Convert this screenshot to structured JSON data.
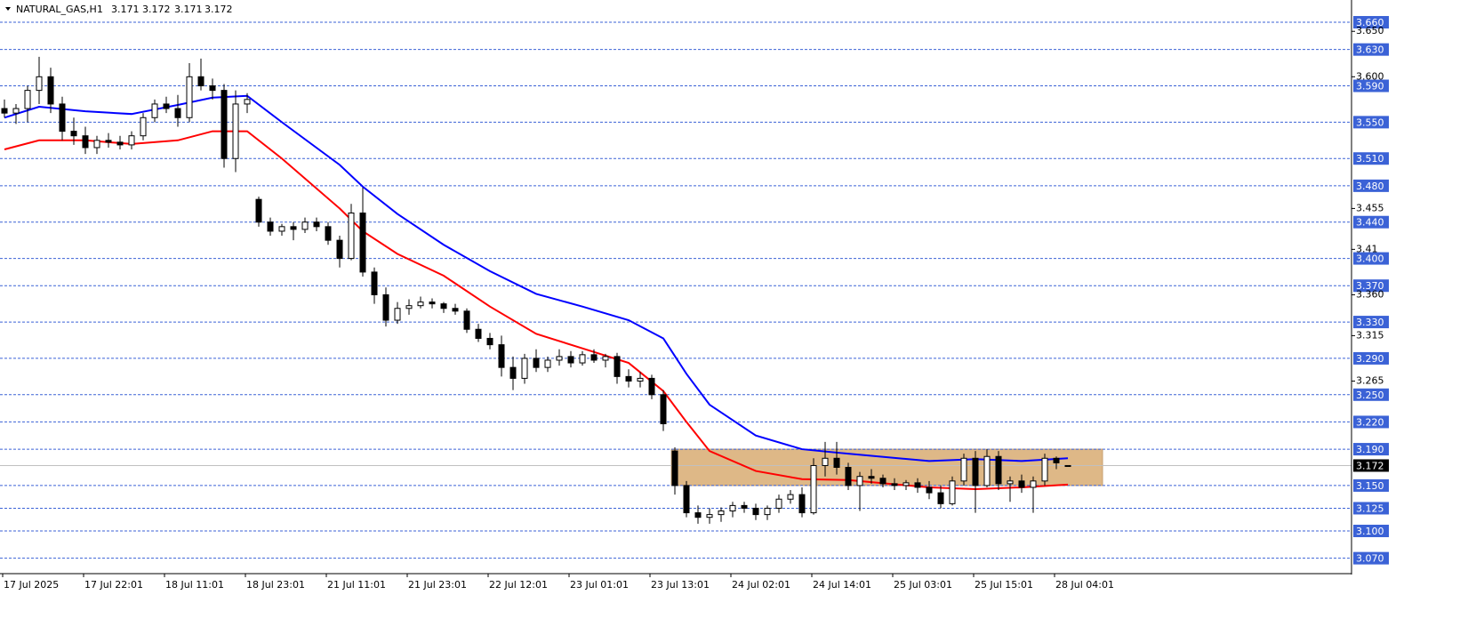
{
  "header": {
    "symbol": "NATURAL_GAS,H1",
    "ohlc": [
      "3.171",
      "3.172",
      "3.171",
      "3.172"
    ]
  },
  "chart_data": {
    "type": "candlestick",
    "categories": [
      "17 Jul 2025",
      null,
      null,
      null,
      null,
      null,
      null,
      "17 Jul 22:01",
      null,
      null,
      null,
      null,
      null,
      null,
      "18 Jul 11:01",
      null,
      null,
      null,
      null,
      null,
      null,
      "18 Jul 23:01",
      null,
      null,
      null,
      null,
      null,
      null,
      "21 Jul 11:01",
      null,
      null,
      null,
      null,
      null,
      null,
      "21 Jul 23:01",
      null,
      null,
      null,
      null,
      null,
      null,
      "22 Jul 12:01",
      null,
      null,
      null,
      null,
      null,
      null,
      "23 Jul 01:01",
      null,
      null,
      null,
      null,
      null,
      null,
      "23 Jul 13:01",
      null,
      null,
      null,
      null,
      null,
      null,
      "24 Jul 02:01",
      null,
      null,
      null,
      null,
      null,
      null,
      "24 Jul 14:01",
      null,
      null,
      null,
      null,
      null,
      null,
      "25 Jul 03:01",
      null,
      null,
      null,
      null,
      null,
      null,
      "25 Jul 15:01",
      null,
      null,
      null,
      null,
      null,
      null,
      "28 Jul 04:01",
      null
    ],
    "open": [
      3.565,
      3.56,
      3.565,
      3.585,
      3.6,
      3.57,
      3.54,
      3.535,
      3.522,
      3.53,
      3.528,
      3.525,
      3.535,
      3.555,
      3.57,
      3.565,
      3.555,
      3.6,
      3.59,
      3.585,
      3.51,
      3.57,
      3.465,
      3.44,
      3.43,
      3.435,
      3.432,
      3.44,
      3.435,
      3.42,
      3.4,
      3.45,
      3.385,
      3.36,
      3.332,
      3.345,
      3.348,
      3.352,
      3.35,
      3.345,
      3.342,
      3.322,
      3.312,
      3.305,
      3.28,
      3.268,
      3.29,
      3.28,
      3.288,
      3.292,
      3.285,
      3.294,
      3.288,
      3.292,
      3.27,
      3.265,
      3.268,
      3.25,
      3.188,
      3.15,
      3.12,
      3.115,
      3.118,
      3.122,
      3.128,
      3.125,
      3.118,
      3.125,
      3.135,
      3.14,
      3.12,
      3.172,
      3.18,
      3.17,
      3.15,
      3.16,
      3.158,
      3.152,
      3.15,
      3.153,
      3.148,
      3.142,
      3.13,
      3.155,
      3.18,
      3.15,
      3.182,
      3.152,
      3.155,
      3.148,
      3.155,
      3.18,
      3.171
    ],
    "high": [
      3.575,
      3.57,
      3.59,
      3.622,
      3.61,
      3.578,
      3.555,
      3.545,
      3.535,
      3.538,
      3.535,
      3.54,
      3.56,
      3.575,
      3.578,
      3.58,
      3.615,
      3.62,
      3.598,
      3.592,
      3.585,
      3.582,
      3.468,
      3.445,
      3.438,
      3.44,
      3.445,
      3.445,
      3.44,
      3.425,
      3.46,
      3.478,
      3.39,
      3.368,
      3.352,
      3.355,
      3.358,
      3.356,
      3.352,
      3.35,
      3.345,
      3.328,
      3.318,
      3.315,
      3.292,
      3.295,
      3.3,
      3.292,
      3.3,
      3.298,
      3.298,
      3.3,
      3.295,
      3.296,
      3.278,
      3.275,
      3.272,
      3.255,
      3.192,
      3.155,
      3.128,
      3.125,
      3.126,
      3.132,
      3.132,
      3.13,
      3.128,
      3.14,
      3.145,
      3.148,
      3.18,
      3.198,
      3.198,
      3.175,
      3.165,
      3.168,
      3.162,
      3.158,
      3.156,
      3.158,
      3.155,
      3.15,
      3.16,
      3.185,
      3.188,
      3.19,
      3.188,
      3.16,
      3.162,
      3.16,
      3.185,
      3.182,
      3.172
    ],
    "low": [
      3.555,
      3.548,
      3.55,
      3.57,
      3.56,
      3.53,
      3.525,
      3.515,
      3.515,
      3.522,
      3.52,
      3.52,
      3.53,
      3.55,
      3.56,
      3.545,
      3.55,
      3.585,
      3.575,
      3.5,
      3.495,
      3.56,
      3.435,
      3.425,
      3.425,
      3.42,
      3.428,
      3.43,
      3.415,
      3.39,
      3.398,
      3.38,
      3.35,
      3.325,
      3.328,
      3.338,
      3.345,
      3.345,
      3.34,
      3.338,
      3.318,
      3.308,
      3.3,
      3.27,
      3.255,
      3.262,
      3.275,
      3.275,
      3.282,
      3.28,
      3.282,
      3.285,
      3.28,
      3.262,
      3.258,
      3.258,
      3.245,
      3.21,
      3.14,
      3.115,
      3.108,
      3.108,
      3.11,
      3.115,
      3.12,
      3.112,
      3.112,
      3.12,
      3.13,
      3.115,
      3.118,
      3.16,
      3.162,
      3.145,
      3.122,
      3.152,
      3.148,
      3.145,
      3.145,
      3.142,
      3.135,
      3.125,
      3.128,
      3.15,
      3.12,
      3.148,
      3.145,
      3.132,
      3.142,
      3.12,
      3.15,
      3.168,
      3.171
    ],
    "close": [
      3.56,
      3.565,
      3.585,
      3.6,
      3.57,
      3.54,
      3.535,
      3.522,
      3.53,
      3.528,
      3.525,
      3.535,
      3.555,
      3.57,
      3.565,
      3.555,
      3.6,
      3.59,
      3.585,
      3.51,
      3.57,
      3.575,
      3.44,
      3.43,
      3.435,
      3.432,
      3.44,
      3.435,
      3.42,
      3.4,
      3.45,
      3.385,
      3.36,
      3.332,
      3.345,
      3.348,
      3.352,
      3.35,
      3.345,
      3.342,
      3.322,
      3.312,
      3.305,
      3.28,
      3.268,
      3.29,
      3.28,
      3.288,
      3.292,
      3.285,
      3.294,
      3.288,
      3.292,
      3.27,
      3.265,
      3.268,
      3.25,
      3.218,
      3.15,
      3.12,
      3.115,
      3.118,
      3.122,
      3.128,
      3.125,
      3.118,
      3.125,
      3.135,
      3.14,
      3.12,
      3.172,
      3.18,
      3.17,
      3.15,
      3.16,
      3.158,
      3.152,
      3.15,
      3.153,
      3.148,
      3.142,
      3.13,
      3.155,
      3.18,
      3.15,
      3.182,
      3.152,
      3.155,
      3.148,
      3.155,
      3.18,
      3.175,
      3.172
    ],
    "series": [
      {
        "color": "#0000ff",
        "x": [
          0,
          3,
          7,
          11,
          15,
          18,
          21,
          24,
          29,
          31,
          34,
          38,
          42,
          46,
          50,
          54,
          57,
          59,
          61,
          65,
          69,
          73,
          80,
          84,
          88,
          92
        ],
        "values": [
          3.555,
          3.567,
          3.562,
          3.559,
          3.569,
          3.577,
          3.579,
          3.55,
          3.503,
          3.479,
          3.449,
          3.415,
          3.386,
          3.361,
          3.347,
          3.332,
          3.312,
          3.273,
          3.239,
          3.205,
          3.19,
          3.185,
          3.177,
          3.179,
          3.177,
          3.18
        ]
      },
      {
        "color": "#ff0000",
        "x": [
          0,
          3,
          7,
          11,
          15,
          18,
          21,
          24,
          29,
          31,
          34,
          38,
          42,
          46,
          50,
          54,
          57,
          59,
          61,
          65,
          69,
          73,
          80,
          84,
          88,
          92
        ],
        "values": [
          3.52,
          3.53,
          3.53,
          3.526,
          3.53,
          3.54,
          3.54,
          3.51,
          3.455,
          3.43,
          3.405,
          3.381,
          3.347,
          3.317,
          3.301,
          3.285,
          3.254,
          3.22,
          3.188,
          3.166,
          3.157,
          3.156,
          3.148,
          3.146,
          3.148,
          3.151
        ]
      }
    ],
    "zone": {
      "x": [
        57.7,
        95
      ],
      "y": [
        3.15,
        3.19
      ],
      "color": "#deb887"
    },
    "ylim": [
      3.053,
      3.6845
    ],
    "yticks": [
      {
        "value": 3.65,
        "label": "3.650"
      },
      {
        "value": 3.6,
        "label": "3.600"
      },
      3.455,
      3.41,
      {
        "value": 3.36,
        "label": "3.360"
      },
      3.315,
      3.265
    ],
    "levels": [
      {
        "value": 3.66,
        "label": "3.660"
      },
      {
        "value": 3.63,
        "label": "3.630"
      },
      {
        "value": 3.59,
        "label": "3.590"
      },
      {
        "value": 3.55,
        "label": "3.550"
      },
      {
        "value": 3.51,
        "label": "3.510"
      },
      {
        "value": 3.48,
        "label": "3.480"
      },
      {
        "value": 3.44,
        "label": "3.440"
      },
      {
        "value": 3.4,
        "label": "3.400"
      },
      {
        "value": 3.37,
        "label": "3.370"
      },
      {
        "value": 3.33,
        "label": "3.330"
      },
      {
        "value": 3.29,
        "label": "3.290"
      },
      {
        "value": 3.25,
        "label": "3.250"
      },
      {
        "value": 3.22,
        "label": "3.220"
      },
      {
        "value": 3.19,
        "label": "3.190"
      },
      {
        "value": 3.15,
        "label": "3.150"
      },
      3.125,
      {
        "value": 3.1,
        "label": "3.100"
      },
      {
        "value": 3.07,
        "label": "3.070"
      }
    ],
    "level_color": "#3b62d6",
    "current": 3.172
  }
}
